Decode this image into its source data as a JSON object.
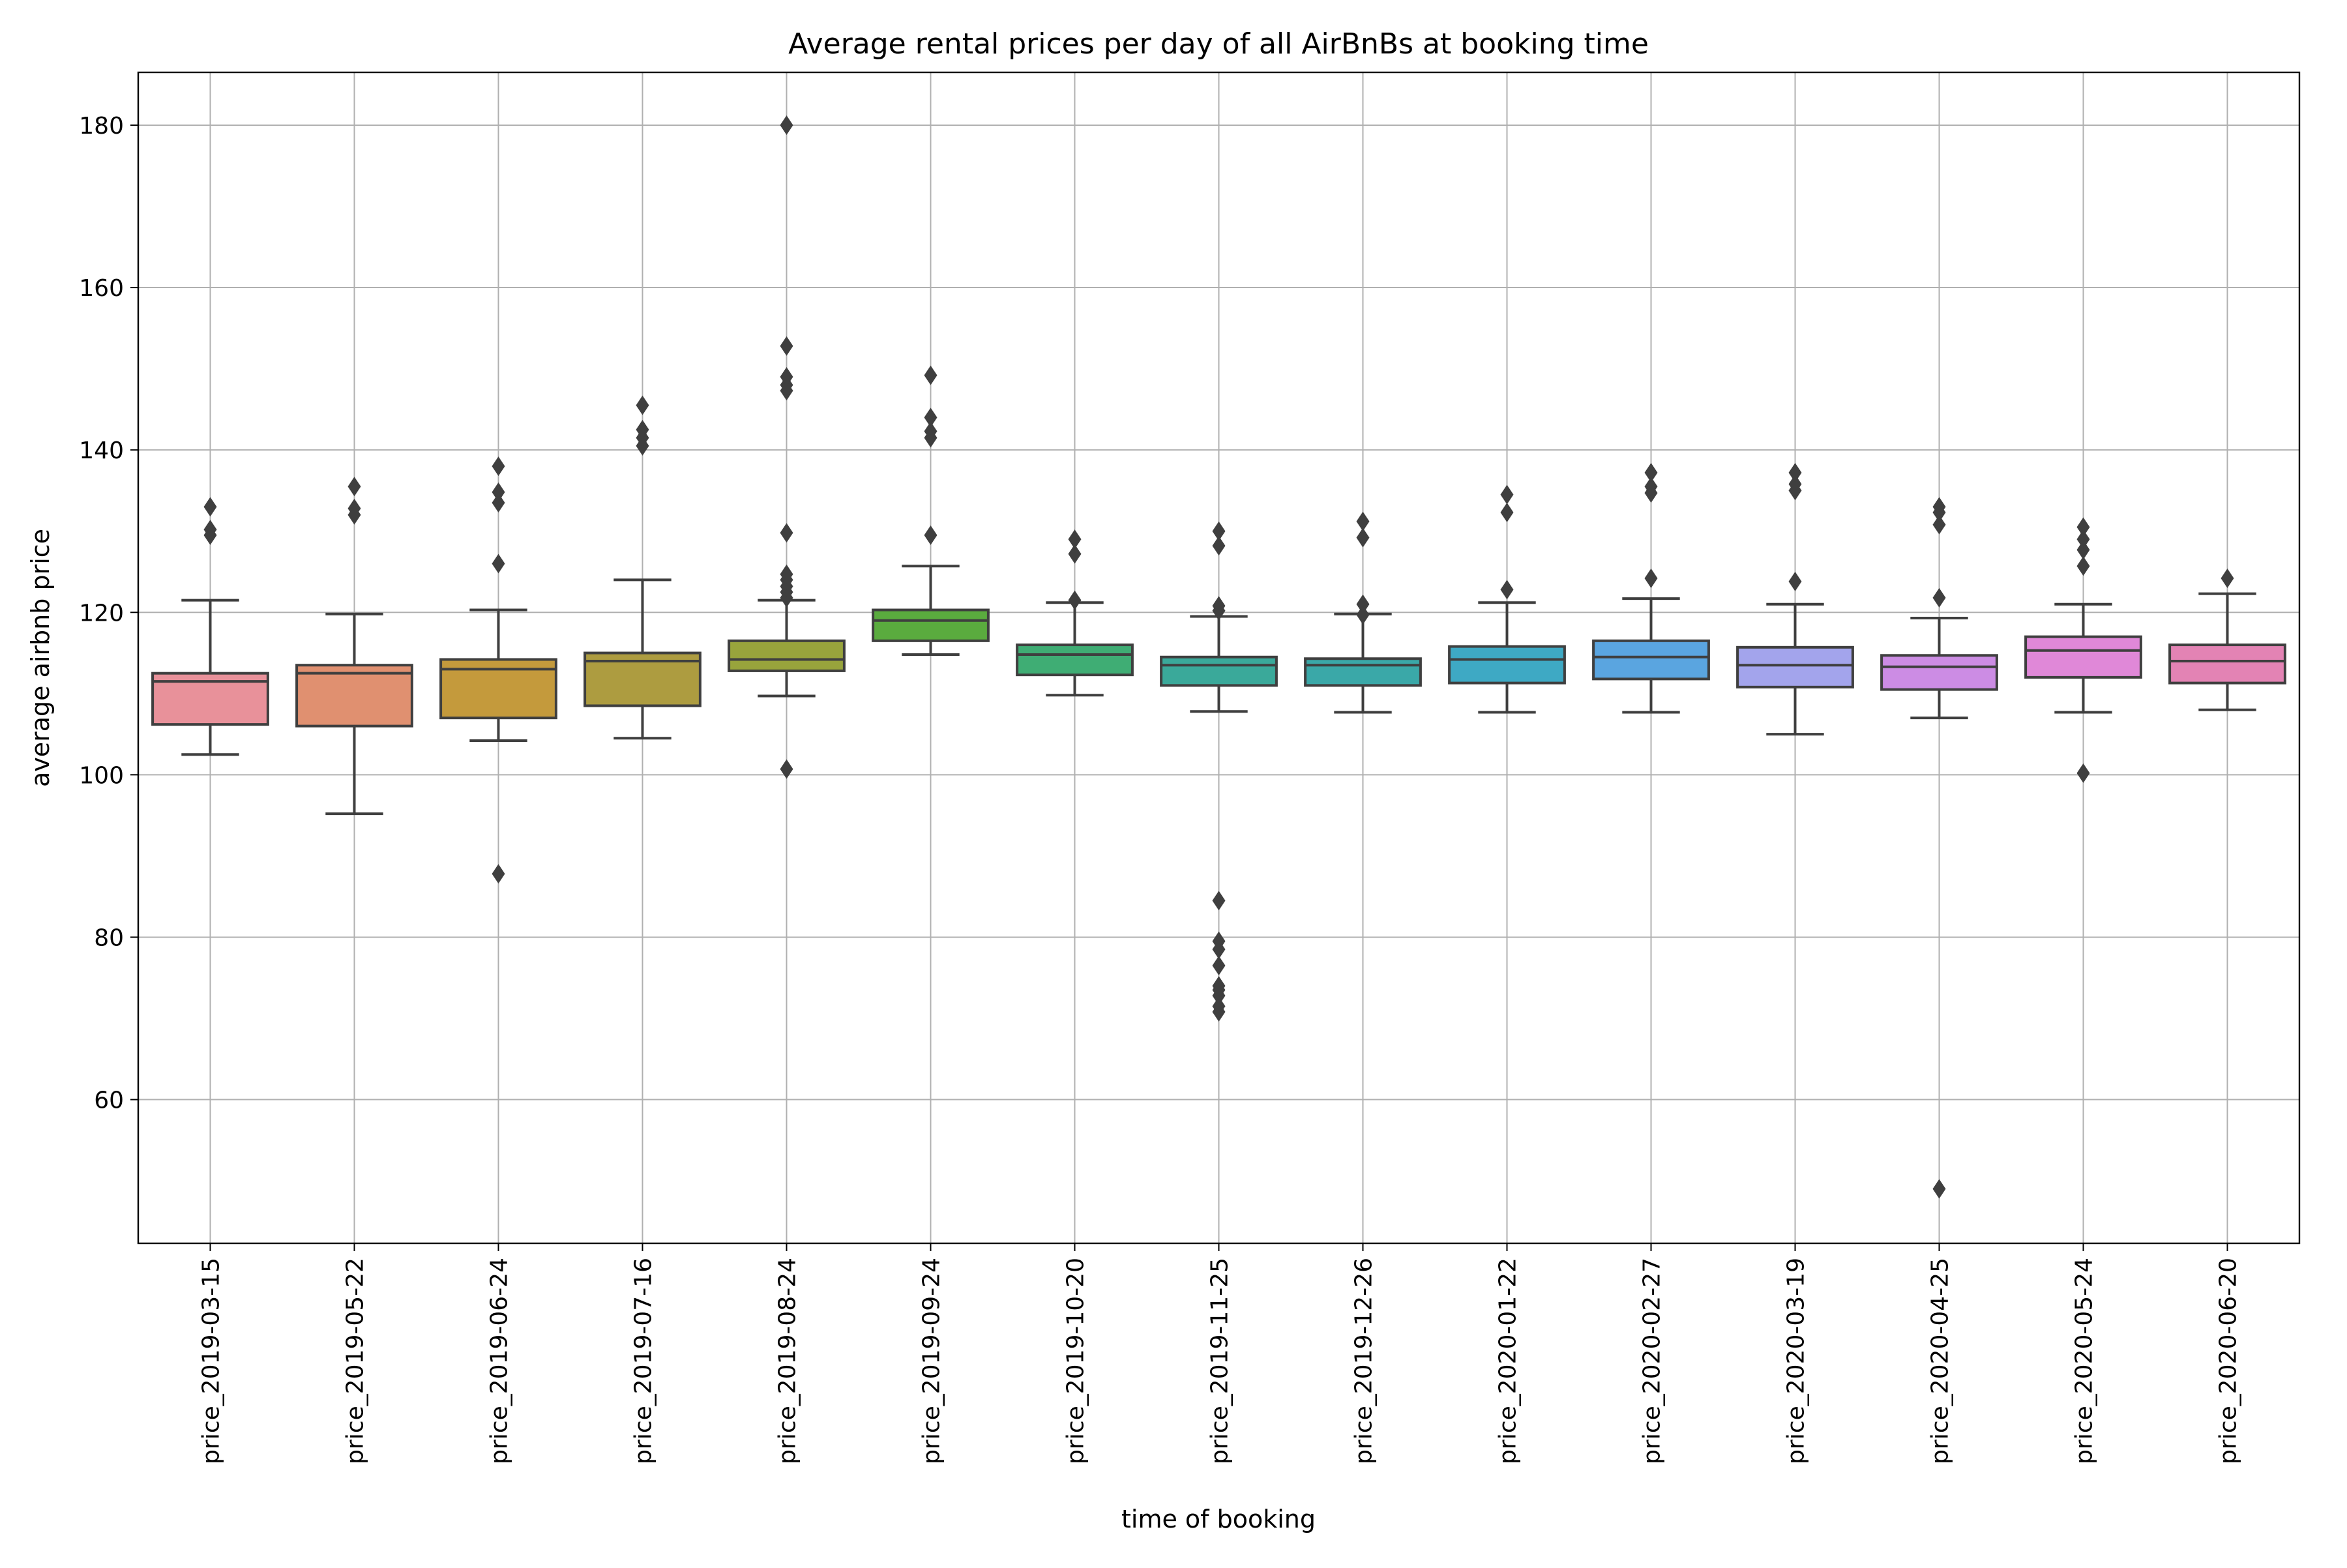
{
  "chart_data": {
    "type": "box",
    "title": "Average rental prices per day of all AirBnBs at booking time",
    "xlabel": "time of booking",
    "ylabel": "average airbnb price",
    "ylim": [
      42.3,
      186.5
    ],
    "yticks": [
      60,
      80,
      100,
      120,
      140,
      160,
      180
    ],
    "grid": true,
    "categories": [
      "price_2019-03-15",
      "price_2019-05-22",
      "price_2019-06-24",
      "price_2019-07-16",
      "price_2019-08-24",
      "price_2019-09-24",
      "price_2019-10-20",
      "price_2019-11-25",
      "price_2019-12-26",
      "price_2020-01-22",
      "price_2020-02-27",
      "price_2020-03-19",
      "price_2020-04-25",
      "price_2020-05-24",
      "price_2020-06-20"
    ],
    "colors": [
      "#e8919a",
      "#e09070",
      "#c49a3c",
      "#ad9c40",
      "#98a43c",
      "#5aab3e",
      "#3fad74",
      "#3aa99a",
      "#3aa8a8",
      "#3ea9c4",
      "#5aa5e0",
      "#a3a4ec",
      "#cc8ce4",
      "#e088d8",
      "#e383b4"
    ],
    "boxes": [
      {
        "whislo": 102.5,
        "q1": 106.2,
        "med": 111.5,
        "q3": 112.5,
        "whishi": 121.5,
        "fliers": [
          129.5,
          130.2,
          133.0
        ]
      },
      {
        "whislo": 95.2,
        "q1": 106.0,
        "med": 112.5,
        "q3": 113.5,
        "whishi": 119.8,
        "fliers": [
          132.0,
          132.8,
          135.5
        ]
      },
      {
        "whislo": 104.2,
        "q1": 107.0,
        "med": 113.0,
        "q3": 114.2,
        "whishi": 120.3,
        "fliers": [
          87.8,
          126.0,
          133.5,
          134.8,
          138.0
        ]
      },
      {
        "whislo": 104.5,
        "q1": 108.5,
        "med": 114.0,
        "q3": 115.0,
        "whishi": 124.0,
        "fliers": [
          140.5,
          141.5,
          142.5,
          145.5
        ]
      },
      {
        "whislo": 109.7,
        "q1": 112.8,
        "med": 114.2,
        "q3": 116.5,
        "whishi": 121.5,
        "fliers": [
          100.7,
          121.8,
          122.5,
          123.2,
          124.0,
          124.7,
          129.8,
          147.3,
          148.0,
          149.0,
          152.8,
          180.0
        ]
      },
      {
        "whislo": 114.8,
        "q1": 116.5,
        "med": 119.0,
        "q3": 120.3,
        "whishi": 125.7,
        "fliers": [
          129.5,
          141.5,
          142.3,
          144.0,
          149.2
        ]
      },
      {
        "whislo": 109.8,
        "q1": 112.3,
        "med": 114.8,
        "q3": 116.0,
        "whishi": 121.2,
        "fliers": [
          121.5,
          127.2,
          129.0
        ]
      },
      {
        "whislo": 107.8,
        "q1": 111.0,
        "med": 113.5,
        "q3": 114.5,
        "whishi": 119.5,
        "fliers": [
          70.8,
          71.5,
          72.8,
          73.5,
          74.0,
          76.5,
          78.5,
          79.5,
          84.5,
          120.2,
          120.8,
          128.2,
          130.0
        ]
      },
      {
        "whislo": 107.7,
        "q1": 111.0,
        "med": 113.5,
        "q3": 114.3,
        "whishi": 119.8,
        "fliers": [
          119.7,
          121.0,
          129.2,
          131.2
        ]
      },
      {
        "whislo": 107.7,
        "q1": 111.3,
        "med": 114.2,
        "q3": 115.8,
        "whishi": 121.2,
        "fliers": [
          122.8,
          132.3,
          134.5
        ]
      },
      {
        "whislo": 107.7,
        "q1": 111.8,
        "med": 114.5,
        "q3": 116.5,
        "whishi": 121.7,
        "fliers": [
          124.2,
          134.7,
          135.5,
          137.2
        ]
      },
      {
        "whislo": 105.0,
        "q1": 110.8,
        "med": 113.5,
        "q3": 115.7,
        "whishi": 121.0,
        "fliers": [
          123.8,
          135.0,
          135.8,
          137.2
        ]
      },
      {
        "whislo": 107.0,
        "q1": 110.5,
        "med": 113.3,
        "q3": 114.7,
        "whishi": 119.3,
        "fliers": [
          49.0,
          121.8,
          130.8,
          132.3,
          133.0
        ]
      },
      {
        "whislo": 107.7,
        "q1": 112.0,
        "med": 115.3,
        "q3": 117.0,
        "whishi": 121.0,
        "fliers": [
          100.2,
          125.7,
          127.7,
          129.0,
          130.5
        ]
      },
      {
        "whislo": 108.0,
        "q1": 111.3,
        "med": 114.0,
        "q3": 116.0,
        "whishi": 122.3,
        "fliers": [
          124.2
        ]
      }
    ]
  }
}
